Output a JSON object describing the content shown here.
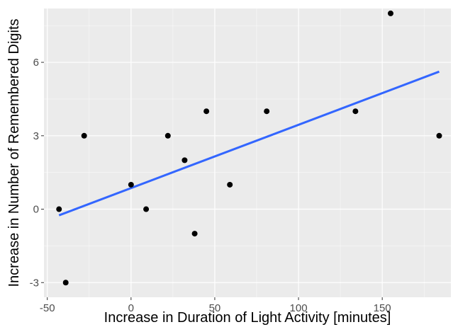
{
  "chart_data": {
    "type": "scatter",
    "xlabel": "Increase in Duration of Light Activity [minutes]",
    "ylabel": "Increase in Number of Remembered Digits",
    "xlim": [
      -52,
      191
    ],
    "ylim": [
      -3.6,
      8.2
    ],
    "x_ticks": [
      -50,
      0,
      50,
      100,
      150
    ],
    "y_ticks": [
      -3,
      0,
      3,
      6
    ],
    "x_tick_labels": [
      "-50",
      "0",
      "50",
      "100",
      "150"
    ],
    "y_tick_labels": [
      "-3",
      "0",
      "3",
      "6"
    ],
    "grid": true,
    "legend": "none",
    "points": [
      {
        "x": -43,
        "y": 0
      },
      {
        "x": -39,
        "y": -3
      },
      {
        "x": -28,
        "y": 3
      },
      {
        "x": 0,
        "y": 1
      },
      {
        "x": 9,
        "y": 0
      },
      {
        "x": 22,
        "y": 3
      },
      {
        "x": 32,
        "y": 2
      },
      {
        "x": 38,
        "y": -1
      },
      {
        "x": 45,
        "y": 4
      },
      {
        "x": 59,
        "y": 1
      },
      {
        "x": 81,
        "y": 4
      },
      {
        "x": 134,
        "y": 4
      },
      {
        "x": 155,
        "y": 8
      },
      {
        "x": 184,
        "y": 3
      }
    ],
    "trend_line": {
      "x": [
        -43,
        184
      ],
      "y": [
        -0.25,
        5.62
      ]
    },
    "colors": {
      "panel": "#ebebeb",
      "grid_major": "#ffffff",
      "point": "#000000",
      "trend": "#3366ff"
    }
  }
}
